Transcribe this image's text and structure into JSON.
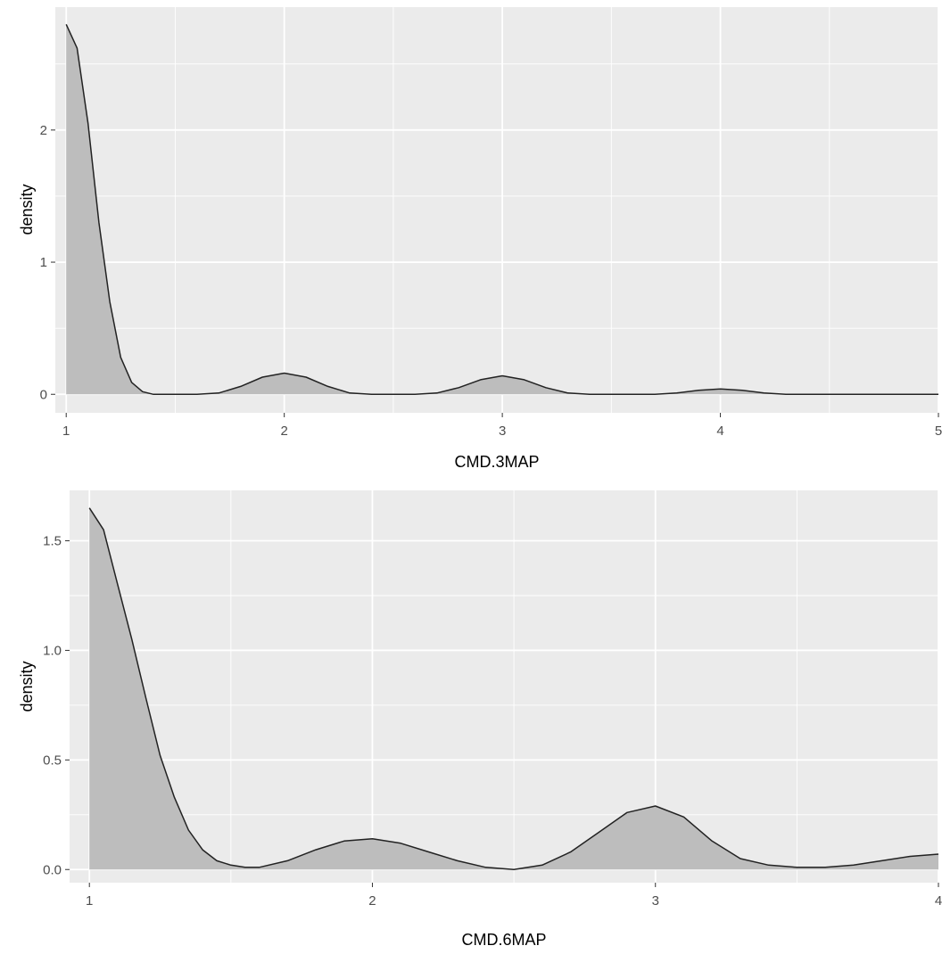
{
  "chart_data": [
    {
      "type": "area",
      "xlabel": "CMD.3MAP",
      "ylabel": "density",
      "xlim": [
        0.95,
        5.0
      ],
      "ylim": [
        -0.14,
        2.93
      ],
      "x_ticks": [
        1,
        2,
        3,
        4,
        5
      ],
      "x_tick_labels": [
        "1",
        "2",
        "3",
        "4",
        "5"
      ],
      "y_ticks": [
        0,
        1,
        2
      ],
      "y_tick_labels": [
        "0",
        "1",
        "2"
      ],
      "grid": true,
      "series": [
        {
          "x": [
            1.0,
            1.05,
            1.1,
            1.15,
            1.2,
            1.25,
            1.3,
            1.35,
            1.4,
            1.5,
            1.6,
            1.7,
            1.8,
            1.9,
            2.0,
            2.1,
            2.2,
            2.3,
            2.4,
            2.5,
            2.6,
            2.7,
            2.8,
            2.9,
            3.0,
            3.1,
            3.2,
            3.3,
            3.4,
            3.5,
            3.6,
            3.7,
            3.8,
            3.9,
            4.0,
            4.1,
            4.2,
            4.3,
            4.5,
            4.75,
            5.0
          ],
          "y": [
            2.8,
            2.62,
            2.05,
            1.3,
            0.7,
            0.28,
            0.09,
            0.02,
            0.0,
            0.0,
            0.0,
            0.01,
            0.06,
            0.13,
            0.16,
            0.13,
            0.06,
            0.01,
            0.0,
            0.0,
            0.0,
            0.01,
            0.05,
            0.11,
            0.14,
            0.11,
            0.05,
            0.01,
            0.0,
            0.0,
            0.0,
            0.0,
            0.01,
            0.03,
            0.04,
            0.03,
            0.01,
            0.0,
            0.0,
            0.0,
            0.0
          ]
        }
      ]
    },
    {
      "type": "area",
      "xlabel": "CMD.6MAP",
      "ylabel": "density",
      "xlim": [
        0.93,
        4.0
      ],
      "ylim": [
        -0.06,
        1.73
      ],
      "x_ticks": [
        1,
        2,
        3,
        4
      ],
      "x_tick_labels": [
        "1",
        "2",
        "3",
        "4"
      ],
      "y_ticks": [
        0,
        0.5,
        1,
        1.5
      ],
      "y_tick_labels": [
        "0.0",
        "0.5",
        "1.0",
        "1.5"
      ],
      "grid": true,
      "series": [
        {
          "x": [
            1.0,
            1.05,
            1.1,
            1.15,
            1.2,
            1.25,
            1.3,
            1.35,
            1.4,
            1.45,
            1.5,
            1.55,
            1.6,
            1.7,
            1.8,
            1.9,
            2.0,
            2.1,
            2.2,
            2.3,
            2.4,
            2.5,
            2.6,
            2.7,
            2.8,
            2.9,
            3.0,
            3.1,
            3.2,
            3.3,
            3.4,
            3.5,
            3.6,
            3.7,
            3.8,
            3.9,
            4.0
          ],
          "y": [
            1.65,
            1.55,
            1.3,
            1.05,
            0.78,
            0.52,
            0.33,
            0.18,
            0.09,
            0.04,
            0.02,
            0.01,
            0.01,
            0.04,
            0.09,
            0.13,
            0.14,
            0.12,
            0.08,
            0.04,
            0.01,
            0.0,
            0.02,
            0.08,
            0.17,
            0.26,
            0.29,
            0.24,
            0.13,
            0.05,
            0.02,
            0.01,
            0.01,
            0.02,
            0.04,
            0.06,
            0.07
          ]
        }
      ]
    }
  ]
}
